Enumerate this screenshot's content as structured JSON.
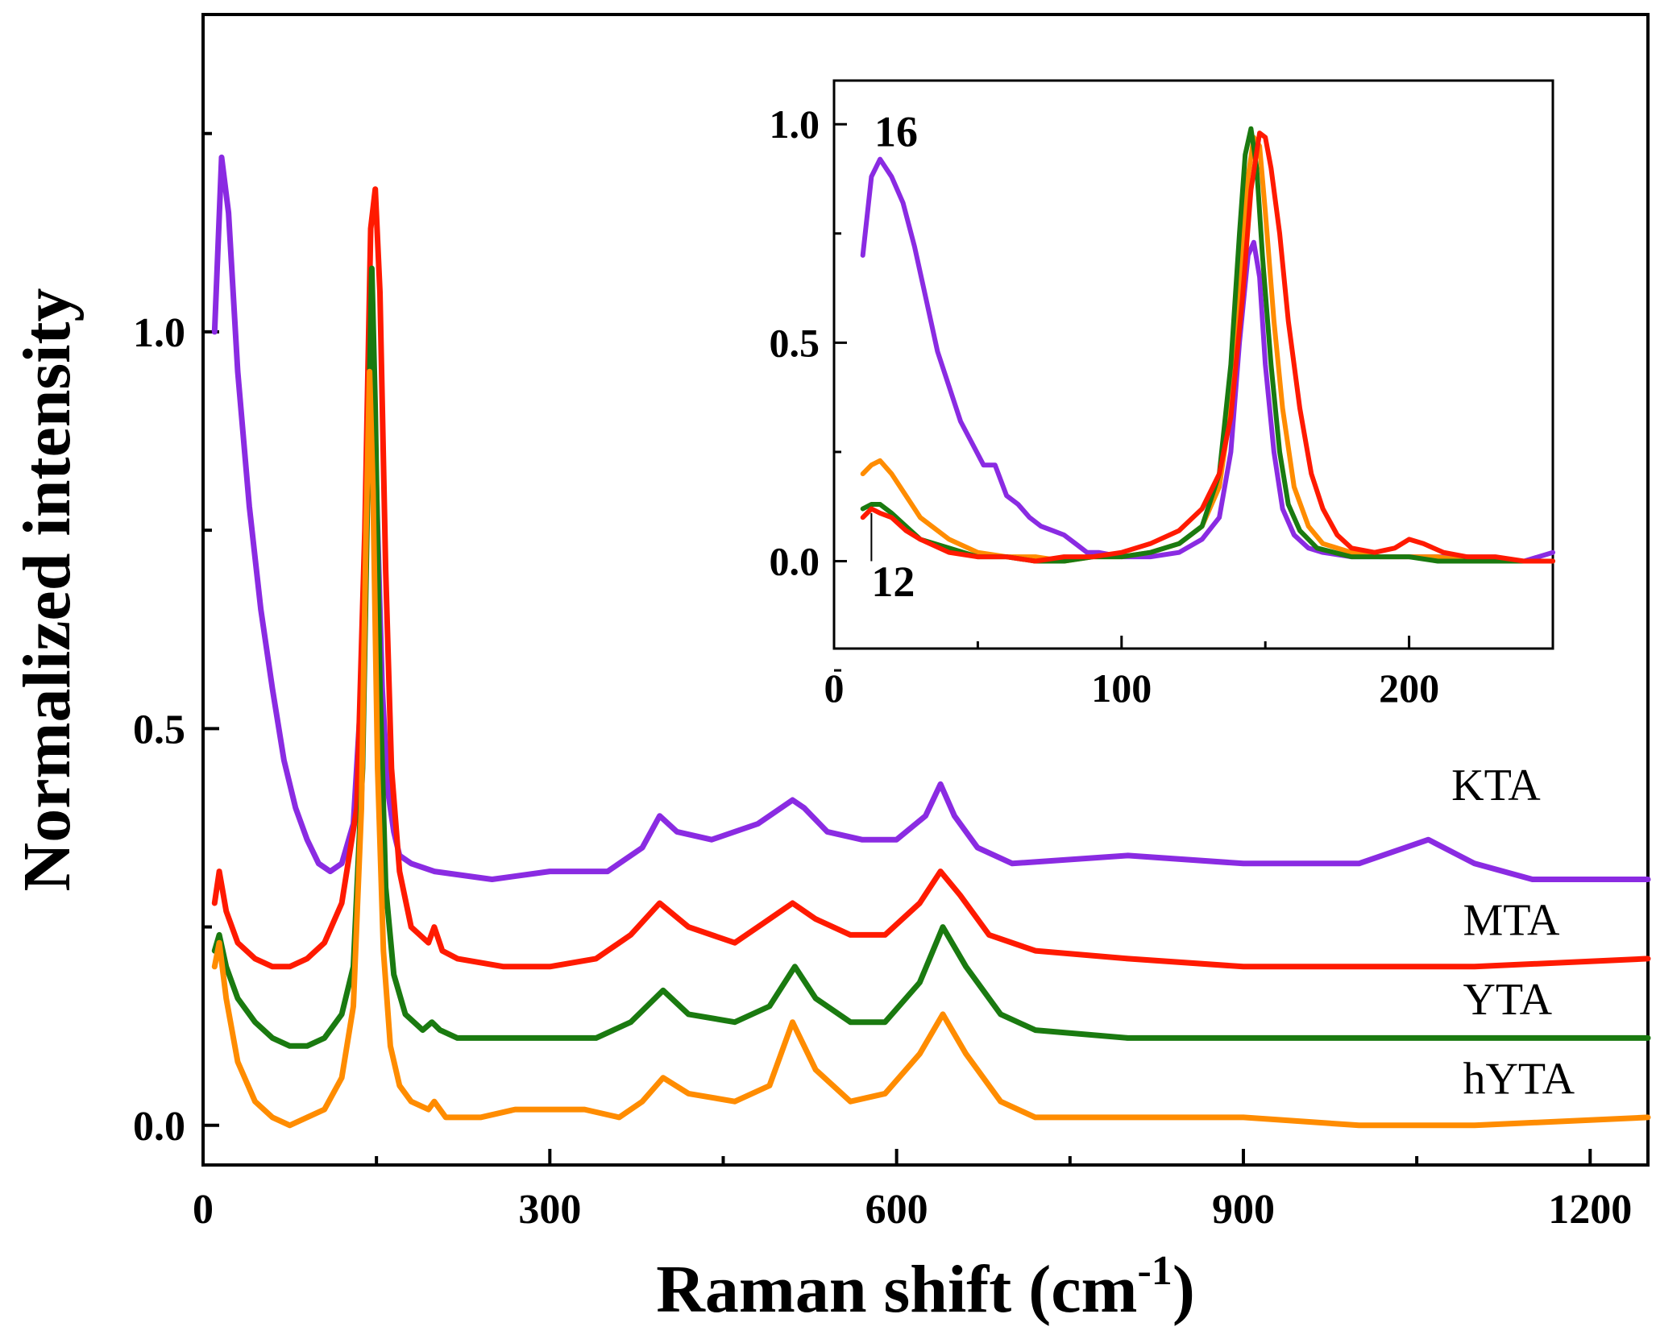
{
  "chart_data": [
    {
      "type": "line",
      "role": "main",
      "xlabel": "Raman shift (cm",
      "xlabel_sup": "-1",
      "xlabel_close": ")",
      "ylabel": "Normalized intensity",
      "xlim": [
        0,
        1250
      ],
      "ylim": [
        -0.05,
        1.4
      ],
      "x_ticks": [
        0,
        300,
        600,
        900,
        1200
      ],
      "y_ticks": [
        0.0,
        0.5,
        1.0
      ],
      "y_tick_labels": [
        "0.0",
        "0.5",
        "1.0"
      ],
      "series": [
        {
          "name": "KTA",
          "label_pos": [
            1080,
            0.41
          ],
          "color": "#8a2be2",
          "x": [
            10,
            16,
            22,
            30,
            40,
            50,
            60,
            70,
            80,
            90,
            100,
            110,
            120,
            130,
            137,
            142,
            146,
            150,
            155,
            160,
            165,
            170,
            180,
            200,
            250,
            300,
            350,
            380,
            395,
            410,
            440,
            480,
            510,
            520,
            540,
            570,
            600,
            625,
            638,
            650,
            670,
            700,
            800,
            900,
            1000,
            1060,
            1100,
            1150,
            1250
          ],
          "y": [
            1.0,
            1.22,
            1.15,
            0.95,
            0.78,
            0.65,
            0.55,
            0.46,
            0.4,
            0.36,
            0.33,
            0.32,
            0.33,
            0.38,
            0.55,
            0.85,
            1.03,
            0.8,
            0.55,
            0.42,
            0.37,
            0.34,
            0.33,
            0.32,
            0.31,
            0.32,
            0.32,
            0.35,
            0.39,
            0.37,
            0.36,
            0.38,
            0.41,
            0.4,
            0.37,
            0.36,
            0.36,
            0.39,
            0.43,
            0.39,
            0.35,
            0.33,
            0.34,
            0.33,
            0.33,
            0.36,
            0.33,
            0.31,
            0.31
          ]
        },
        {
          "name": "MTA",
          "label_pos": [
            1090,
            0.24
          ],
          "color": "#ff1a00",
          "x": [
            10,
            14,
            20,
            30,
            45,
            60,
            75,
            90,
            105,
            120,
            133,
            140,
            145,
            149,
            153,
            158,
            163,
            170,
            180,
            195,
            200,
            207,
            220,
            260,
            300,
            340,
            370,
            395,
            420,
            460,
            490,
            510,
            530,
            560,
            590,
            620,
            638,
            655,
            680,
            720,
            800,
            900,
            1000,
            1100,
            1250
          ],
          "y": [
            0.28,
            0.32,
            0.27,
            0.23,
            0.21,
            0.2,
            0.2,
            0.21,
            0.23,
            0.28,
            0.4,
            0.75,
            1.13,
            1.18,
            1.05,
            0.7,
            0.45,
            0.32,
            0.25,
            0.23,
            0.25,
            0.22,
            0.21,
            0.2,
            0.2,
            0.21,
            0.24,
            0.28,
            0.25,
            0.23,
            0.26,
            0.28,
            0.26,
            0.24,
            0.24,
            0.28,
            0.32,
            0.29,
            0.24,
            0.22,
            0.21,
            0.2,
            0.2,
            0.2,
            0.21
          ]
        },
        {
          "name": "YTA",
          "label_pos": [
            1090,
            0.14
          ],
          "color": "#1a7a10",
          "x": [
            10,
            14,
            20,
            30,
            45,
            60,
            75,
            90,
            105,
            120,
            130,
            138,
            143,
            146,
            149,
            153,
            158,
            165,
            175,
            190,
            198,
            205,
            220,
            260,
            300,
            340,
            370,
            398,
            420,
            460,
            490,
            512,
            530,
            560,
            590,
            620,
            640,
            660,
            690,
            720,
            800,
            900,
            1000,
            1100,
            1250
          ],
          "y": [
            0.22,
            0.24,
            0.2,
            0.16,
            0.13,
            0.11,
            0.1,
            0.1,
            0.11,
            0.14,
            0.2,
            0.45,
            0.85,
            1.08,
            0.9,
            0.55,
            0.3,
            0.19,
            0.14,
            0.12,
            0.13,
            0.12,
            0.11,
            0.11,
            0.11,
            0.11,
            0.13,
            0.17,
            0.14,
            0.13,
            0.15,
            0.2,
            0.16,
            0.13,
            0.13,
            0.18,
            0.25,
            0.2,
            0.14,
            0.12,
            0.11,
            0.11,
            0.11,
            0.11,
            0.11
          ]
        },
        {
          "name": "hYTA",
          "label_pos": [
            1090,
            0.04
          ],
          "color": "#ff8c00",
          "x": [
            10,
            14,
            20,
            30,
            45,
            60,
            75,
            90,
            105,
            120,
            130,
            137,
            141,
            144,
            147,
            151,
            156,
            162,
            170,
            180,
            195,
            200,
            210,
            240,
            270,
            300,
            330,
            360,
            380,
            398,
            420,
            460,
            490,
            510,
            530,
            560,
            590,
            620,
            640,
            660,
            690,
            720,
            800,
            900,
            1000,
            1100,
            1250
          ],
          "y": [
            0.2,
            0.23,
            0.16,
            0.08,
            0.03,
            0.01,
            0.0,
            0.01,
            0.02,
            0.06,
            0.15,
            0.4,
            0.75,
            0.95,
            0.8,
            0.45,
            0.22,
            0.1,
            0.05,
            0.03,
            0.02,
            0.03,
            0.01,
            0.01,
            0.02,
            0.02,
            0.02,
            0.01,
            0.03,
            0.06,
            0.04,
            0.03,
            0.05,
            0.13,
            0.07,
            0.03,
            0.04,
            0.09,
            0.14,
            0.09,
            0.03,
            0.01,
            0.01,
            0.01,
            0.0,
            0.0,
            0.01
          ]
        }
      ]
    },
    {
      "type": "line",
      "role": "inset",
      "xlim": [
        0,
        250
      ],
      "ylim": [
        -0.2,
        1.1
      ],
      "x_ticks": [
        0,
        100,
        200
      ],
      "y_ticks": [
        0.0,
        0.5,
        1.0
      ],
      "y_tick_labels": [
        "0.0",
        "0.5",
        "1.0"
      ],
      "annotations": [
        {
          "text": "16",
          "x": 14,
          "y": 0.95
        },
        {
          "text": "12",
          "x": 13,
          "y": -0.08
        }
      ],
      "series": [
        {
          "name": "KTA",
          "color": "#8a2be2",
          "x": [
            10,
            13,
            16,
            20,
            24,
            28,
            32,
            36,
            40,
            44,
            48,
            52,
            56,
            60,
            64,
            68,
            72,
            76,
            80,
            84,
            88,
            92,
            100,
            110,
            120,
            128,
            134,
            138,
            141,
            144,
            146,
            148,
            150,
            153,
            156,
            160,
            165,
            170,
            180,
            190,
            200,
            210,
            220,
            230,
            240,
            250
          ],
          "y": [
            0.7,
            0.88,
            0.92,
            0.88,
            0.82,
            0.72,
            0.6,
            0.48,
            0.4,
            0.32,
            0.27,
            0.22,
            0.22,
            0.15,
            0.13,
            0.1,
            0.08,
            0.07,
            0.06,
            0.04,
            0.02,
            0.02,
            0.01,
            0.01,
            0.02,
            0.05,
            0.1,
            0.25,
            0.5,
            0.7,
            0.73,
            0.65,
            0.45,
            0.25,
            0.12,
            0.06,
            0.03,
            0.02,
            0.01,
            0.01,
            0.01,
            0.01,
            0.01,
            0.0,
            0.0,
            0.02
          ]
        },
        {
          "name": "hYTA",
          "color": "#ff8c00",
          "x": [
            10,
            13,
            16,
            20,
            25,
            30,
            40,
            50,
            60,
            70,
            80,
            90,
            100,
            110,
            120,
            128,
            134,
            138,
            141,
            144,
            146,
            148,
            150,
            153,
            156,
            160,
            165,
            170,
            180,
            190,
            200,
            210,
            220,
            230,
            240,
            250
          ],
          "y": [
            0.2,
            0.22,
            0.23,
            0.2,
            0.15,
            0.1,
            0.05,
            0.02,
            0.01,
            0.01,
            0.0,
            0.01,
            0.01,
            0.02,
            0.04,
            0.08,
            0.17,
            0.35,
            0.65,
            0.88,
            0.97,
            0.95,
            0.8,
            0.55,
            0.35,
            0.17,
            0.08,
            0.04,
            0.02,
            0.01,
            0.01,
            0.01,
            0.0,
            0.0,
            0.0,
            0.0
          ]
        },
        {
          "name": "YTA",
          "color": "#1a7a10",
          "x": [
            10,
            13,
            16,
            20,
            25,
            30,
            40,
            50,
            60,
            70,
            80,
            90,
            100,
            110,
            120,
            128,
            134,
            138,
            141,
            143,
            145,
            147,
            149,
            152,
            155,
            158,
            162,
            168,
            180,
            190,
            200,
            210,
            220,
            230,
            240,
            250
          ],
          "y": [
            0.12,
            0.13,
            0.13,
            0.11,
            0.08,
            0.05,
            0.03,
            0.01,
            0.01,
            0.0,
            0.0,
            0.01,
            0.01,
            0.02,
            0.04,
            0.08,
            0.2,
            0.45,
            0.75,
            0.93,
            0.99,
            0.9,
            0.7,
            0.45,
            0.25,
            0.13,
            0.07,
            0.03,
            0.01,
            0.01,
            0.01,
            0.0,
            0.0,
            0.0,
            0.0,
            0.0
          ]
        },
        {
          "name": "MTA",
          "color": "#ff1a00",
          "x": [
            10,
            13,
            16,
            20,
            25,
            30,
            40,
            50,
            60,
            70,
            80,
            90,
            100,
            110,
            120,
            128,
            134,
            138,
            142,
            145,
            148,
            150,
            152,
            155,
            158,
            162,
            166,
            170,
            175,
            180,
            188,
            195,
            200,
            205,
            212,
            220,
            230,
            240,
            250
          ],
          "y": [
            0.1,
            0.12,
            0.11,
            0.1,
            0.07,
            0.05,
            0.02,
            0.01,
            0.01,
            0.0,
            0.01,
            0.01,
            0.02,
            0.04,
            0.07,
            0.12,
            0.2,
            0.33,
            0.6,
            0.85,
            0.98,
            0.97,
            0.9,
            0.75,
            0.55,
            0.35,
            0.2,
            0.12,
            0.06,
            0.03,
            0.02,
            0.03,
            0.05,
            0.04,
            0.02,
            0.01,
            0.01,
            0.0,
            0.0
          ]
        }
      ]
    }
  ]
}
